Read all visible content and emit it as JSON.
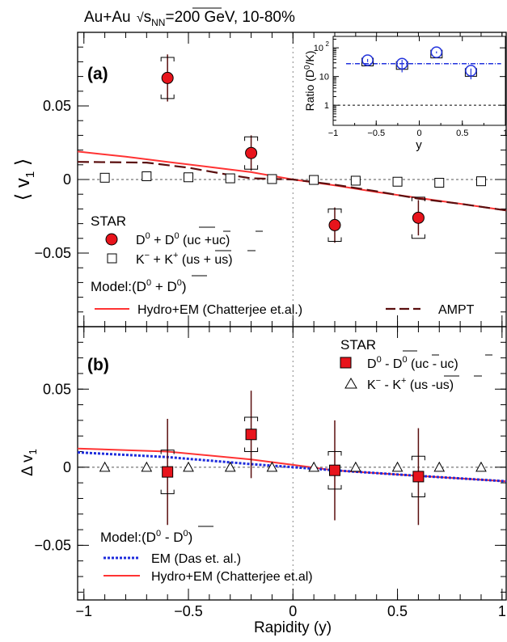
{
  "colors": {
    "d0_fill": "#e8141c",
    "d0_err": "#5a0e0e",
    "hydro": "#ff3333",
    "ampt": "#5a0e0e",
    "em": "#1d2bdc",
    "ratio": "#2233dd",
    "zero_line": "#555555"
  },
  "chart_data": [
    {
      "id": "panel-a",
      "type": "scatter",
      "title": "Au+Au √sNN=200 GeV, 10-80%",
      "title_parts": [
        "Au+Au ",
        "s",
        "NN",
        "=200 GeV, 10-80%"
      ],
      "panel_label": "(a)",
      "ylabel": "⟨ v1 ⟩",
      "ylabel_parts": [
        "⟨ v",
        "1",
        " ⟩"
      ],
      "xlim": [
        -1.03,
        1.02
      ],
      "ylim": [
        -0.1,
        0.1
      ],
      "yticks": [
        -0.05,
        0,
        0.05
      ],
      "ytick_labels": [
        "−0.05",
        "0",
        "0.05"
      ],
      "legend_header": "STAR",
      "model_header": "Model:(D0 + D0)",
      "model_header_parts": [
        "Model:(D",
        "0",
        " + ",
        "D",
        "0",
        ")"
      ],
      "series": [
        {
          "name": "D0 + D0 (uc + uc)",
          "label_parts": [
            "D",
            "0",
            " + ",
            "D",
            "0",
            " (",
            "u",
            "c +u",
            "c",
            ")"
          ],
          "marker": "circle",
          "x": [
            -0.6,
            -0.2,
            0.2,
            0.6
          ],
          "y": [
            0.069,
            0.018,
            -0.031,
            -0.026
          ],
          "stat_err": [
            0.016,
            0.012,
            0.012,
            0.012
          ],
          "sys_err": [
            0.014,
            0.011,
            0.011,
            0.014
          ]
        },
        {
          "name": "K− + K+ (us + us)",
          "label_parts": [
            "K",
            "−",
            " + K",
            "+",
            " (",
            "u",
            "s + u",
            "s",
            ")"
          ],
          "marker": "open-square",
          "x": [
            -0.9,
            -0.7,
            -0.5,
            -0.3,
            -0.1,
            0.1,
            0.3,
            0.5,
            0.7,
            0.9
          ],
          "y": [
            0.0012,
            0.0022,
            0.0015,
            0.0008,
            0.0003,
            -0.0003,
            -0.0008,
            -0.0015,
            -0.0022,
            -0.0012
          ]
        }
      ],
      "models": [
        {
          "name": "Hydro+EM (Chatterjee et.al.)",
          "style": "solid",
          "x": [
            -1.03,
            -0.8,
            -0.6,
            -0.4,
            -0.2,
            0,
            0.2,
            0.4,
            0.6,
            0.8,
            1.02
          ],
          "y": [
            0.019,
            0.0155,
            0.012,
            0.0085,
            0.005,
            0.0,
            -0.004,
            -0.0085,
            -0.0125,
            -0.0165,
            -0.021
          ]
        },
        {
          "name": "AMPT",
          "style": "dashed",
          "x": [
            -1.03,
            -0.7,
            -0.5,
            -0.3,
            -0.2,
            0,
            0.2,
            0.4,
            0.6,
            0.8,
            1.02
          ],
          "y": [
            0.012,
            0.0115,
            0.008,
            0.003,
            0.0008,
            0.0,
            -0.0035,
            -0.008,
            -0.013,
            -0.0165,
            -0.021
          ]
        }
      ],
      "inset": {
        "ylabel": "Ratio (D0/K)",
        "ylabel_parts": [
          "Ratio (D",
          "0",
          "/K)"
        ],
        "xlabel": "y",
        "xlim": [
          -1,
          1
        ],
        "xticks": [
          -1,
          -0.5,
          0,
          0.5,
          1
        ],
        "xtick_labels": [
          "−1",
          "−0.5",
          "0",
          "0.5",
          "1"
        ],
        "ylog": true,
        "ylim": [
          0.2,
          250
        ],
        "yticks": [
          1,
          10,
          100
        ],
        "ytick_labels": [
          "1",
          "10",
          "10^2"
        ],
        "points": {
          "x": [
            -0.6,
            -0.2,
            0.2,
            0.6
          ],
          "y": [
            37,
            28,
            70,
            16
          ],
          "y_err_low": [
            5,
            14,
            6,
            8
          ],
          "y_err_high": [
            4,
            10,
            5,
            3
          ]
        },
        "fit_value": 28,
        "reference_value": 1
      }
    },
    {
      "id": "panel-b",
      "type": "scatter",
      "panel_label": "(b)",
      "ylabel": "Δ v1",
      "ylabel_parts": [
        "Δ v",
        "1"
      ],
      "xlabel": "Rapidity (y)",
      "xlim": [
        -1.03,
        1.02
      ],
      "ylim": [
        -0.085,
        0.09
      ],
      "xticks": [
        -1,
        -0.5,
        0,
        0.5,
        1
      ],
      "xtick_labels": [
        "−1",
        "−0.5",
        "0",
        "0.5",
        "1"
      ],
      "yticks": [
        -0.05,
        0,
        0.05
      ],
      "ytick_labels": [
        "−0.05",
        "0",
        "0.05"
      ],
      "legend_header": "STAR",
      "model_header": "Model:(D0 − D0)",
      "model_header_parts": [
        "Model:(D",
        "0",
        " - ",
        "D",
        "0",
        ")"
      ],
      "series": [
        {
          "name": "D0 − D0 (uc − uc)",
          "label_parts": [
            "D",
            "0",
            " - ",
            "D",
            "0",
            " (",
            "u",
            "c - u",
            "c",
            ")"
          ],
          "marker": "square",
          "x": [
            -0.6,
            -0.2,
            0.2,
            0.6
          ],
          "y": [
            -0.003,
            0.021,
            -0.002,
            -0.006
          ],
          "stat_err": [
            0.034,
            0.028,
            0.032,
            0.031
          ],
          "sys_err": [
            0.014,
            0.011,
            0.012,
            0.013
          ]
        },
        {
          "name": "K− − K+ (us − us)",
          "label_parts": [
            "K",
            "−",
            " - K",
            "+",
            " (",
            "u",
            "s -u",
            "s",
            ")"
          ],
          "marker": "open-triangle",
          "x": [
            -0.9,
            -0.7,
            -0.5,
            -0.3,
            -0.1,
            0.1,
            0.3,
            0.5,
            0.7,
            0.9
          ],
          "y": [
            0.0,
            0.0,
            0.0,
            0.0,
            0.0,
            0.0,
            0.0,
            0.0,
            0.0,
            0.0
          ]
        }
      ],
      "models": [
        {
          "name": "EM (Das et. al.)",
          "style": "dotted",
          "x": [
            -1.03,
            -0.6,
            -0.2,
            0,
            0.2,
            0.6,
            1.02
          ],
          "y": [
            0.0095,
            0.0065,
            0.002,
            0.0,
            -0.002,
            -0.0055,
            -0.009
          ]
        },
        {
          "name": "Hydro+EM (Chatterjee et.al)",
          "style": "solid",
          "x": [
            -1.03,
            -0.6,
            -0.2,
            0,
            0.2,
            0.6,
            1.02
          ],
          "y": [
            0.012,
            0.01,
            0.005,
            0.0015,
            -0.002,
            -0.0055,
            -0.009
          ]
        }
      ]
    }
  ]
}
